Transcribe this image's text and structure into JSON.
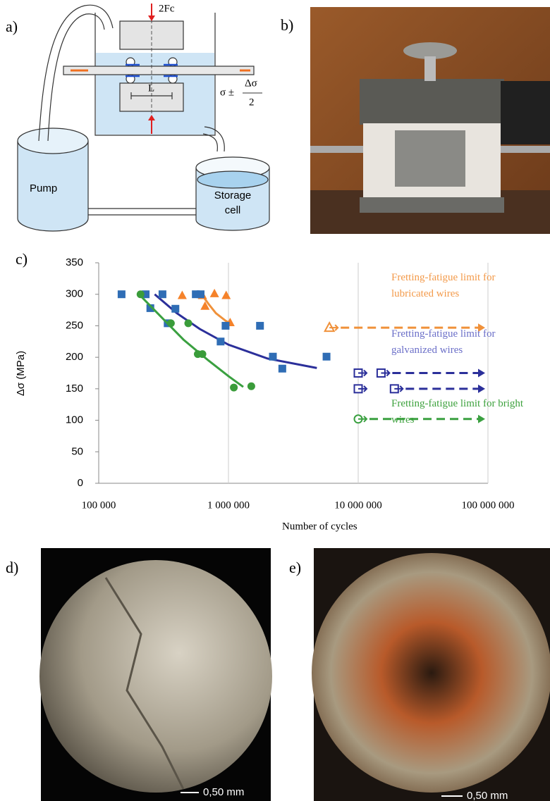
{
  "panels": {
    "a": "a)",
    "b": "b)",
    "c": "c)",
    "d": "d)",
    "e": "e)"
  },
  "diagram": {
    "force": "2Fc",
    "length": "L",
    "stress_prefix": "σ ±",
    "stress_num": "Δσ",
    "stress_den": "2",
    "pump": "Pump",
    "storage": [
      "Storage",
      "cell"
    ]
  },
  "photos": {
    "d_scale": "0,50 mm",
    "e_scale": "0,50 mm"
  },
  "chart_data": {
    "type": "scatter",
    "x_label": "Number of cycles",
    "y_label": "Δσ (MPa)",
    "xscale": "log",
    "xlim": [
      100000,
      100000000
    ],
    "xticks": [
      {
        "value": 100000,
        "label": "100 000"
      },
      {
        "value": 1000000,
        "label": "1 000 000"
      },
      {
        "value": 10000000,
        "label": "10 000 000"
      },
      {
        "value": 100000000,
        "label": "100 000 000"
      }
    ],
    "ylim": [
      0,
      350
    ],
    "yticks": [
      0,
      50,
      100,
      150,
      200,
      250,
      300,
      350
    ],
    "grid": true,
    "series": [
      {
        "name": "Fretting-fatigue limit for lubricated wires",
        "color": "#f5822a",
        "label_color": "#f39a4a",
        "fit_color": "#f0913a",
        "marker": "triangle",
        "x": [
          440000,
          630000,
          660000,
          780000,
          960000,
          1030000
        ],
        "values": [
          298,
          298,
          281,
          301,
          298,
          255
        ],
        "runout_x": [
          6000000
        ],
        "runout_values": [
          247
        ],
        "fit_x": [
          620000,
          700000,
          800000,
          950000,
          1070000
        ],
        "fit_values": [
          300,
          285,
          270,
          258,
          252
        ]
      },
      {
        "name": "Fretting-fatigue limit for galvanized wires",
        "color": "#2f6db5",
        "label_color": "#6b6fc8",
        "fit_color": "#2b2f9a",
        "marker": "square",
        "x": [
          150000,
          230000,
          250000,
          310000,
          340000,
          390000,
          560000,
          610000,
          870000,
          950000,
          1750000,
          2200000,
          2600000,
          5700000
        ],
        "values": [
          300,
          300,
          278,
          300,
          254,
          277,
          300,
          300,
          225,
          250,
          250,
          201,
          182,
          201
        ],
        "runout_x": [
          10000000,
          10000000,
          15000000,
          19000000
        ],
        "runout_values": [
          175,
          150,
          175,
          150
        ],
        "fit_x": [
          270000,
          400000,
          600000,
          1000000,
          2000000,
          4800000
        ],
        "fit_values": [
          300,
          270,
          245,
          220,
          198,
          183
        ]
      },
      {
        "name": "Fretting-fatigue limit for bright wires",
        "color": "#3a9c3a",
        "label_color": "#3ea23e",
        "fit_color": "#3aa040",
        "marker": "circle",
        "x": [
          210000,
          360000,
          490000,
          580000,
          630000,
          1100000,
          1500000
        ],
        "values": [
          300,
          254,
          254,
          205,
          205,
          152,
          154
        ],
        "runout_x": [
          10000000
        ],
        "runout_values": [
          102
        ],
        "fit_x": [
          200000,
          300000,
          450000,
          700000,
          1000000,
          1300000
        ],
        "fit_values": [
          302,
          265,
          228,
          195,
          170,
          153
        ]
      }
    ]
  }
}
